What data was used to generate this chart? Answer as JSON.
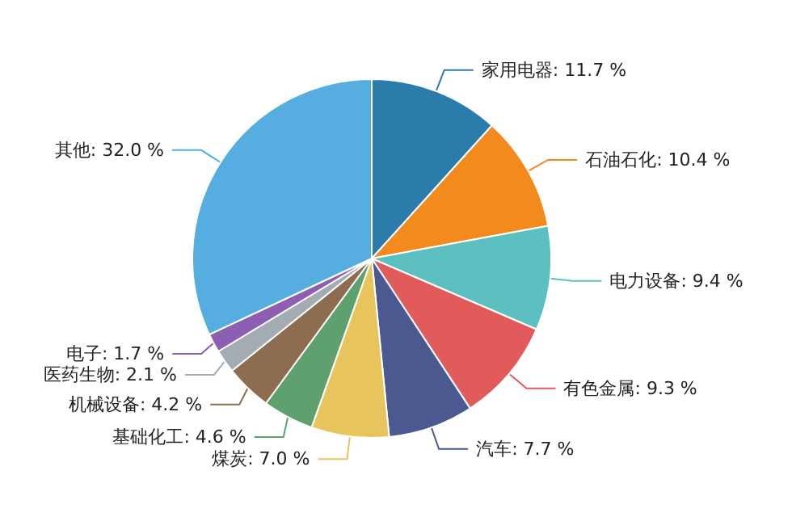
{
  "chart_data": {
    "type": "pie",
    "categories": [
      "家用电器",
      "石油石化",
      "电力设备",
      "有色金属",
      "汽车",
      "煤炭",
      "基础化工",
      "机械设备",
      "医药生物",
      "电子",
      "其他"
    ],
    "values": [
      11.7,
      10.4,
      9.4,
      9.3,
      7.7,
      7.0,
      4.6,
      4.2,
      2.1,
      1.7,
      32.0
    ],
    "value_labels": [
      "11.7 %",
      "10.4 %",
      "9.4 %",
      "9.3 %",
      "7.7 %",
      "7.0 %",
      "4.6 %",
      "4.2 %",
      "2.1 %",
      "1.7 %",
      "32.0 %"
    ],
    "colors": [
      "#2b7bab",
      "#f28a1d",
      "#5cc0c0",
      "#e15b5b",
      "#4c5890",
      "#e8c55c",
      "#5fa06f",
      "#8e6c50",
      "#a3abb3",
      "#8d5fb3",
      "#55aedf"
    ],
    "legend": false
  }
}
